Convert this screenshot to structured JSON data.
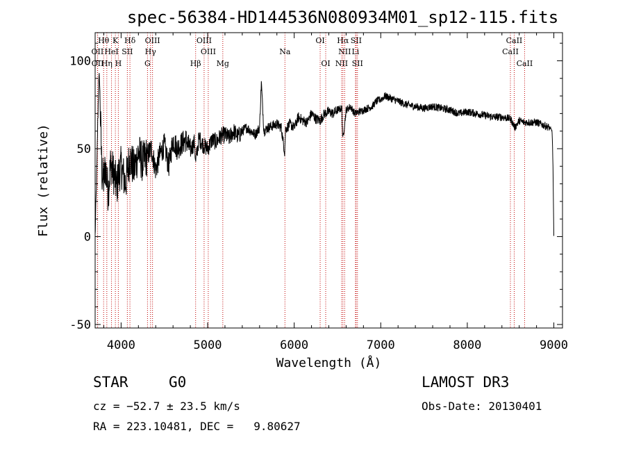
{
  "chart_data": {
    "type": "line",
    "title": "spec-56384-HD144536N080934M01_sp12-115.fits",
    "xlabel": "Wavelength (Å)",
    "ylabel": "Flux (relative)",
    "xlim": [
      3700,
      9100
    ],
    "ylim": [
      -52,
      116
    ],
    "xticks": [
      4000,
      5000,
      6000,
      7000,
      8000,
      9000
    ],
    "yticks": [
      -50,
      0,
      50,
      100
    ],
    "series": [
      {
        "name": "flux",
        "x": [
          3700,
          3710,
          3720,
          3730,
          3740,
          3750,
          3760,
          3780,
          3800,
          3820,
          3850,
          3880,
          3900,
          3930,
          3950,
          3970,
          4000,
          4050,
          4100,
          4150,
          4200,
          4250,
          4300,
          4350,
          4400,
          4450,
          4500,
          4550,
          4600,
          4650,
          4700,
          4750,
          4800,
          4850,
          4860,
          4900,
          4950,
          5000,
          5050,
          5100,
          5150,
          5200,
          5250,
          5300,
          5350,
          5400,
          5450,
          5500,
          5550,
          5600,
          5620,
          5650,
          5700,
          5750,
          5800,
          5850,
          5890,
          5900,
          5950,
          6000,
          6050,
          6100,
          6150,
          6200,
          6250,
          6300,
          6350,
          6400,
          6450,
          6500,
          6550,
          6562,
          6600,
          6650,
          6700,
          6750,
          6800,
          6850,
          6900,
          6950,
          7000,
          7050,
          7100,
          7150,
          7200,
          7250,
          7300,
          7400,
          7500,
          7600,
          7700,
          7800,
          7900,
          8000,
          8100,
          8200,
          8300,
          8400,
          8500,
          8550,
          8600,
          8650,
          8700,
          8800,
          8900,
          8950,
          8980,
          8990,
          9000
        ],
        "y": [
          0,
          20,
          38,
          65,
          85,
          92,
          70,
          35,
          32,
          40,
          25,
          42,
          38,
          33,
          28,
          35,
          40,
          30,
          45,
          38,
          48,
          42,
          46,
          50,
          38,
          47,
          52,
          40,
          55,
          50,
          53,
          55,
          49,
          54,
          42,
          56,
          52,
          50,
          55,
          54,
          57,
          58,
          56,
          60,
          57,
          60,
          62,
          60,
          58,
          62,
          88,
          60,
          62,
          63,
          64,
          62,
          48,
          61,
          64,
          62,
          68,
          66,
          65,
          70,
          67,
          66,
          70,
          71,
          70,
          72,
          73,
          55,
          72,
          74,
          70,
          71,
          72,
          73,
          74,
          77,
          78,
          80,
          79,
          78,
          77,
          76,
          75,
          74,
          73,
          74,
          73,
          72,
          70,
          71,
          70,
          69,
          68,
          68,
          67,
          62,
          66,
          65,
          65,
          65,
          63,
          62,
          60,
          40,
          0
        ]
      }
    ],
    "spectral_lines": [
      {
        "label": "Hθ",
        "wavelength": 3798,
        "row": 0
      },
      {
        "label": "K",
        "wavelength": 3934,
        "row": 0
      },
      {
        "label": "Hδ",
        "wavelength": 4102,
        "row": 0
      },
      {
        "label": "OIII",
        "wavelength": 4363,
        "row": 0
      },
      {
        "label": "OIII",
        "wavelength": 4959,
        "row": 0
      },
      {
        "label": "OI",
        "wavelength": 6300,
        "row": 0
      },
      {
        "label": "Hα",
        "wavelength": 6563,
        "row": 0
      },
      {
        "label": "SII",
        "wavelength": 6716,
        "row": 0
      },
      {
        "label": "CaII",
        "wavelength": 8542,
        "row": 0
      },
      {
        "label": "OII",
        "wavelength": 3727,
        "row": 1
      },
      {
        "label": "HeI",
        "wavelength": 3889,
        "row": 1
      },
      {
        "label": "SII",
        "wavelength": 4072,
        "row": 1
      },
      {
        "label": "Hγ",
        "wavelength": 4340,
        "row": 1
      },
      {
        "label": "OIII",
        "wavelength": 5007,
        "row": 1
      },
      {
        "label": "Na",
        "wavelength": 5893,
        "row": 1
      },
      {
        "label": "NII",
        "wavelength": 6583,
        "row": 1
      },
      {
        "label": "Li",
        "wavelength": 6708,
        "row": 1
      },
      {
        "label": "CaII",
        "wavelength": 8498,
        "row": 1
      },
      {
        "label": "OII",
        "wavelength": 3729,
        "row": 2
      },
      {
        "label": "Hη",
        "wavelength": 3835,
        "row": 2
      },
      {
        "label": "H",
        "wavelength": 3968,
        "row": 2
      },
      {
        "label": "G",
        "wavelength": 4305,
        "row": 2
      },
      {
        "label": "Hβ",
        "wavelength": 4861,
        "row": 2
      },
      {
        "label": "Mg",
        "wavelength": 5175,
        "row": 2
      },
      {
        "label": "OI",
        "wavelength": 6364,
        "row": 2
      },
      {
        "label": "NII",
        "wavelength": 6548,
        "row": 2
      },
      {
        "label": "SII",
        "wavelength": 6731,
        "row": 2
      },
      {
        "label": "CaII",
        "wavelength": 8662,
        "row": 2
      }
    ],
    "line_color": "#c00000",
    "data_color": "#000000"
  },
  "info": {
    "class": "STAR",
    "subclass": "G0",
    "survey": "LAMOST DR3",
    "cz": "cz = −52.7 ± 23.5 km/s",
    "obs_date": "Obs-Date: 20130401",
    "coords": "RA = 223.10481, DEC =   9.80627"
  }
}
